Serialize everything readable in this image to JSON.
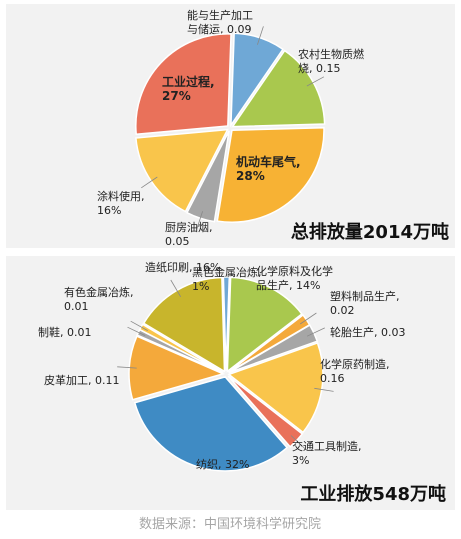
{
  "chart_data": [
    {
      "type": "pie",
      "title": "总排放量2014万吨",
      "slices": [
        {
          "label": [
            "能与生产加工",
            "与储运, 0.09"
          ],
          "value": 0.09,
          "color": "#6fa8d6"
        },
        {
          "label": [
            "农村生物质燃",
            "烧, 0.15"
          ],
          "value": 0.15,
          "color": "#a9c84e"
        },
        {
          "label": [
            "机动车尾气,",
            "28%"
          ],
          "value": 0.28,
          "color": "#f7b234"
        },
        {
          "label": [
            "厨房油烟,",
            "0.05"
          ],
          "value": 0.05,
          "color": "#a6a6a6"
        },
        {
          "label": [
            "涂料使用,",
            "16%"
          ],
          "value": 0.16,
          "color": "#f9c54b"
        },
        {
          "label": [
            "工业过程,",
            "27%"
          ],
          "value": 0.27,
          "color": "#e9715a"
        }
      ]
    },
    {
      "type": "pie",
      "title": "工业排放548万吨",
      "slices": [
        {
          "label": [
            "化学原料及化学",
            "品生产, 14%"
          ],
          "value": 0.14,
          "color": "#a9c84e"
        },
        {
          "label": [
            "塑料制品生产,",
            "0.02"
          ],
          "value": 0.02,
          "color": "#f4a93b"
        },
        {
          "label": [
            "轮胎生产, 0.03"
          ],
          "value": 0.03,
          "color": "#a6a6a6"
        },
        {
          "label": [
            "化学原药制造,",
            "0.16"
          ],
          "value": 0.16,
          "color": "#f9c54b"
        },
        {
          "label": [
            "交通工具制造,",
            "3%"
          ],
          "value": 0.03,
          "color": "#e9715a"
        },
        {
          "label": [
            "纺织, 32%"
          ],
          "value": 0.32,
          "color": "#3f8bc4"
        },
        {
          "label": [
            "皮革加工, 0.11"
          ],
          "value": 0.11,
          "color": "#f4a93b"
        },
        {
          "label": [
            "制鞋, 0.01"
          ],
          "value": 0.01,
          "color": "#a6a6a6"
        },
        {
          "label": [
            "有色金属冶炼,",
            "0.01"
          ],
          "value": 0.01,
          "color": "#f9c54b"
        },
        {
          "label": [
            "造纸印刷, 16%"
          ],
          "value": 0.16,
          "color": "#c8b52c"
        },
        {
          "label": [
            "黑色金属冶炼,",
            "1%"
          ],
          "value": 0.01,
          "color": "#6fa8d6"
        }
      ]
    }
  ],
  "source": "数据来源：中国环境科学研究院"
}
